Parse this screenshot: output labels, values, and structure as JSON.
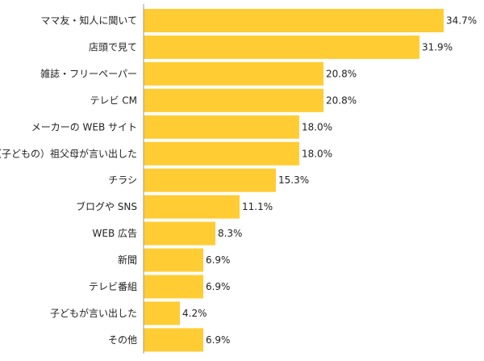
{
  "chart_data": {
    "type": "bar",
    "orientation": "horizontal",
    "categories": [
      "ママ友・知人に聞いて",
      "店頭で見て",
      "雑誌・フリーペーパー",
      "テレビ CM",
      "メーカーの WEB サイト",
      "（子どもの）祖父母が言い出した",
      "チラシ",
      "ブログや SNS",
      "WEB 広告",
      "新聞",
      "テレビ番組",
      "子どもが言い出した",
      "その他"
    ],
    "values": [
      34.7,
      31.9,
      20.8,
      20.8,
      18.0,
      18.0,
      15.3,
      11.1,
      8.3,
      6.9,
      6.9,
      4.2,
      6.9
    ],
    "value_labels": [
      "34.7%",
      "31.9%",
      "20.8%",
      "20.8%",
      "18.0%",
      "18.0%",
      "15.3%",
      "11.1%",
      "8.3%",
      "6.9%",
      "6.9%",
      "4.2%",
      "6.9%"
    ],
    "xlim": [
      0,
      34.7
    ],
    "grid": false,
    "legend": "none",
    "colors": {
      "bar": "#ffcc33",
      "axis": "#999999",
      "text": "#222222"
    }
  }
}
